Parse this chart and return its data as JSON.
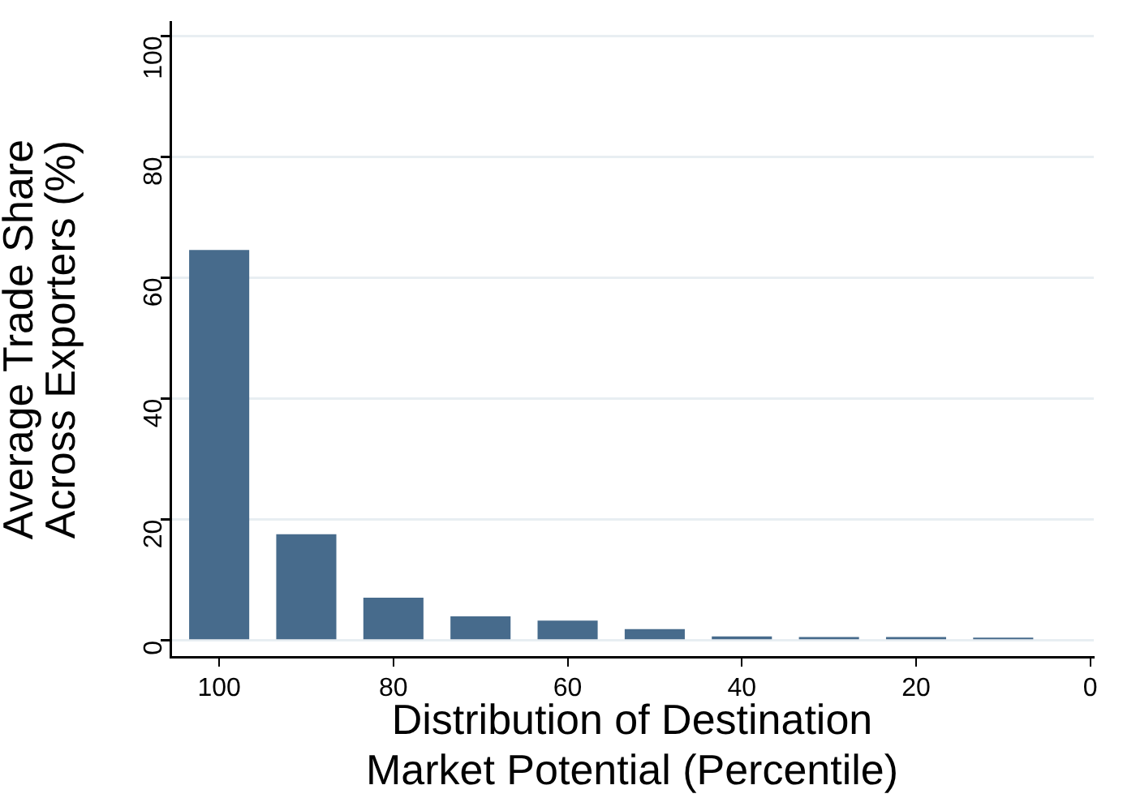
{
  "chart_data": {
    "type": "bar",
    "xlabel": "Distribution of Destination\nMarket Potential (Percentile)",
    "ylabel": "Average Trade Share\nAcross Exporters (%)",
    "x": [
      100,
      90,
      80,
      70,
      60,
      50,
      40,
      30,
      20,
      10
    ],
    "values": [
      64.6,
      17.6,
      7.1,
      4.0,
      3.3,
      1.9,
      0.7,
      0.6,
      0.6,
      0.5
    ],
    "color": "#476b8c",
    "xlim": [
      105.6,
      -0.4
    ],
    "xticks": [
      100,
      80,
      60,
      40,
      20,
      0
    ],
    "ylim": [
      -2.7,
      102.3
    ],
    "yticks": [
      0,
      20,
      40,
      60,
      80,
      100
    ],
    "grid": "y",
    "legend": false
  }
}
